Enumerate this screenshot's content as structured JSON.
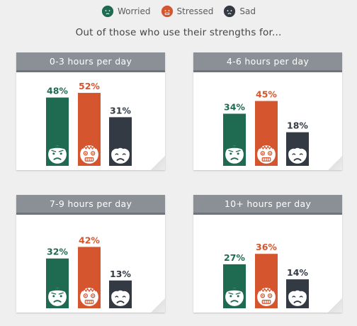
{
  "legend": [
    {
      "label": "Worried",
      "color": "#1e6b52",
      "face": "worried"
    },
    {
      "label": "Stressed",
      "color": "#d4552e",
      "face": "stressed"
    },
    {
      "label": "Sad",
      "color": "#343a43",
      "face": "sad"
    }
  ],
  "subtitle": "Out of those who use their strengths for...",
  "chart_data": [
    {
      "type": "bar",
      "title": "0-3 hours per day",
      "categories": [
        "Worried",
        "Stressed",
        "Sad"
      ],
      "values": [
        48,
        52,
        31
      ],
      "value_labels": [
        "48%",
        "52%",
        "31%"
      ],
      "ylim": [
        0,
        60
      ]
    },
    {
      "type": "bar",
      "title": "4-6 hours per day",
      "categories": [
        "Worried",
        "Stressed",
        "Sad"
      ],
      "values": [
        34,
        45,
        18
      ],
      "value_labels": [
        "34%",
        "45%",
        "18%"
      ],
      "ylim": [
        0,
        60
      ]
    },
    {
      "type": "bar",
      "title": "7-9 hours per day",
      "categories": [
        "Worried",
        "Stressed",
        "Sad"
      ],
      "values": [
        32,
        42,
        13
      ],
      "value_labels": [
        "32%",
        "42%",
        "13%"
      ],
      "ylim": [
        0,
        60
      ]
    },
    {
      "type": "bar",
      "title": "10+ hours per day",
      "categories": [
        "Worried",
        "Stressed",
        "Sad"
      ],
      "values": [
        27,
        36,
        14
      ],
      "value_labels": [
        "27%",
        "36%",
        "14%"
      ],
      "ylim": [
        0,
        60
      ]
    }
  ]
}
